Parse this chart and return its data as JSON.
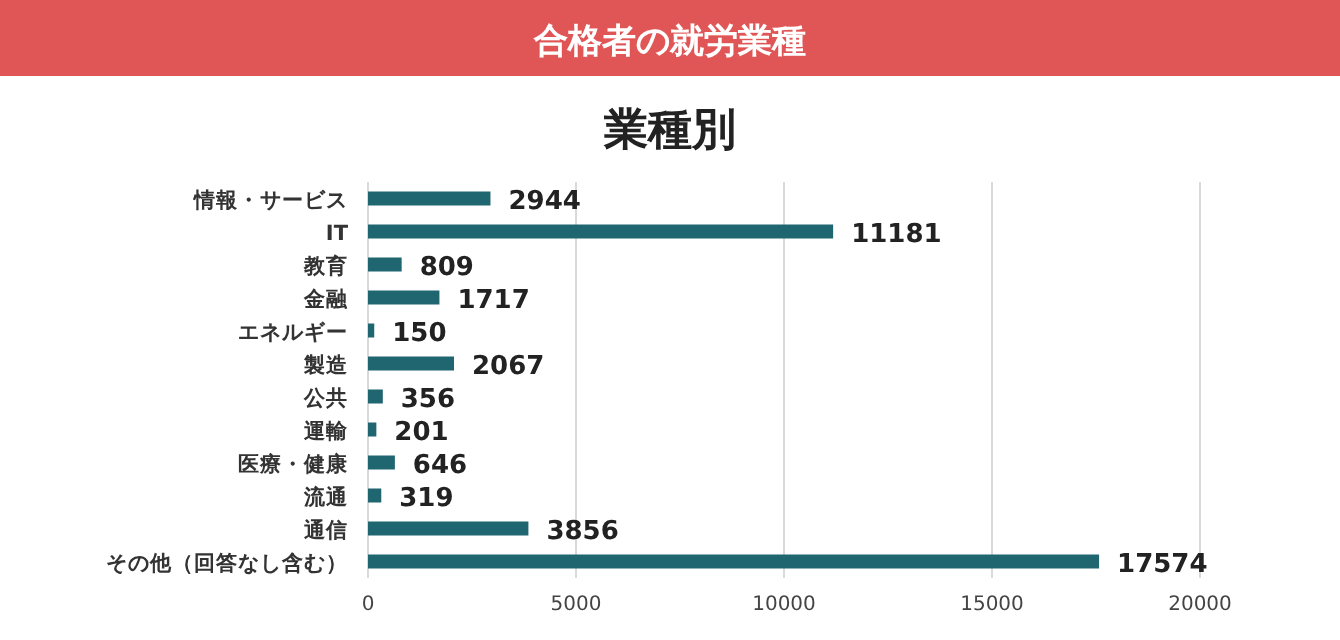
{
  "chart_data": {
    "type": "bar",
    "orientation": "horizontal",
    "title": "合格者の就労業種",
    "subtitle": "業種別",
    "categories": [
      "情報・サービス",
      "IT",
      "教育",
      "金融",
      "エネルギー",
      "製造",
      "公共",
      "運輸",
      "医療・健康",
      "流通",
      "通信",
      "その他（回答なし含む）"
    ],
    "values": [
      2944,
      11181,
      809,
      1717,
      150,
      2067,
      356,
      201,
      646,
      319,
      3856,
      17574
    ],
    "color": "#1f6670",
    "xlim": [
      0,
      20000
    ],
    "xticks": [
      0,
      5000,
      10000,
      15000,
      20000
    ],
    "grid": "x",
    "data_labels": true
  }
}
